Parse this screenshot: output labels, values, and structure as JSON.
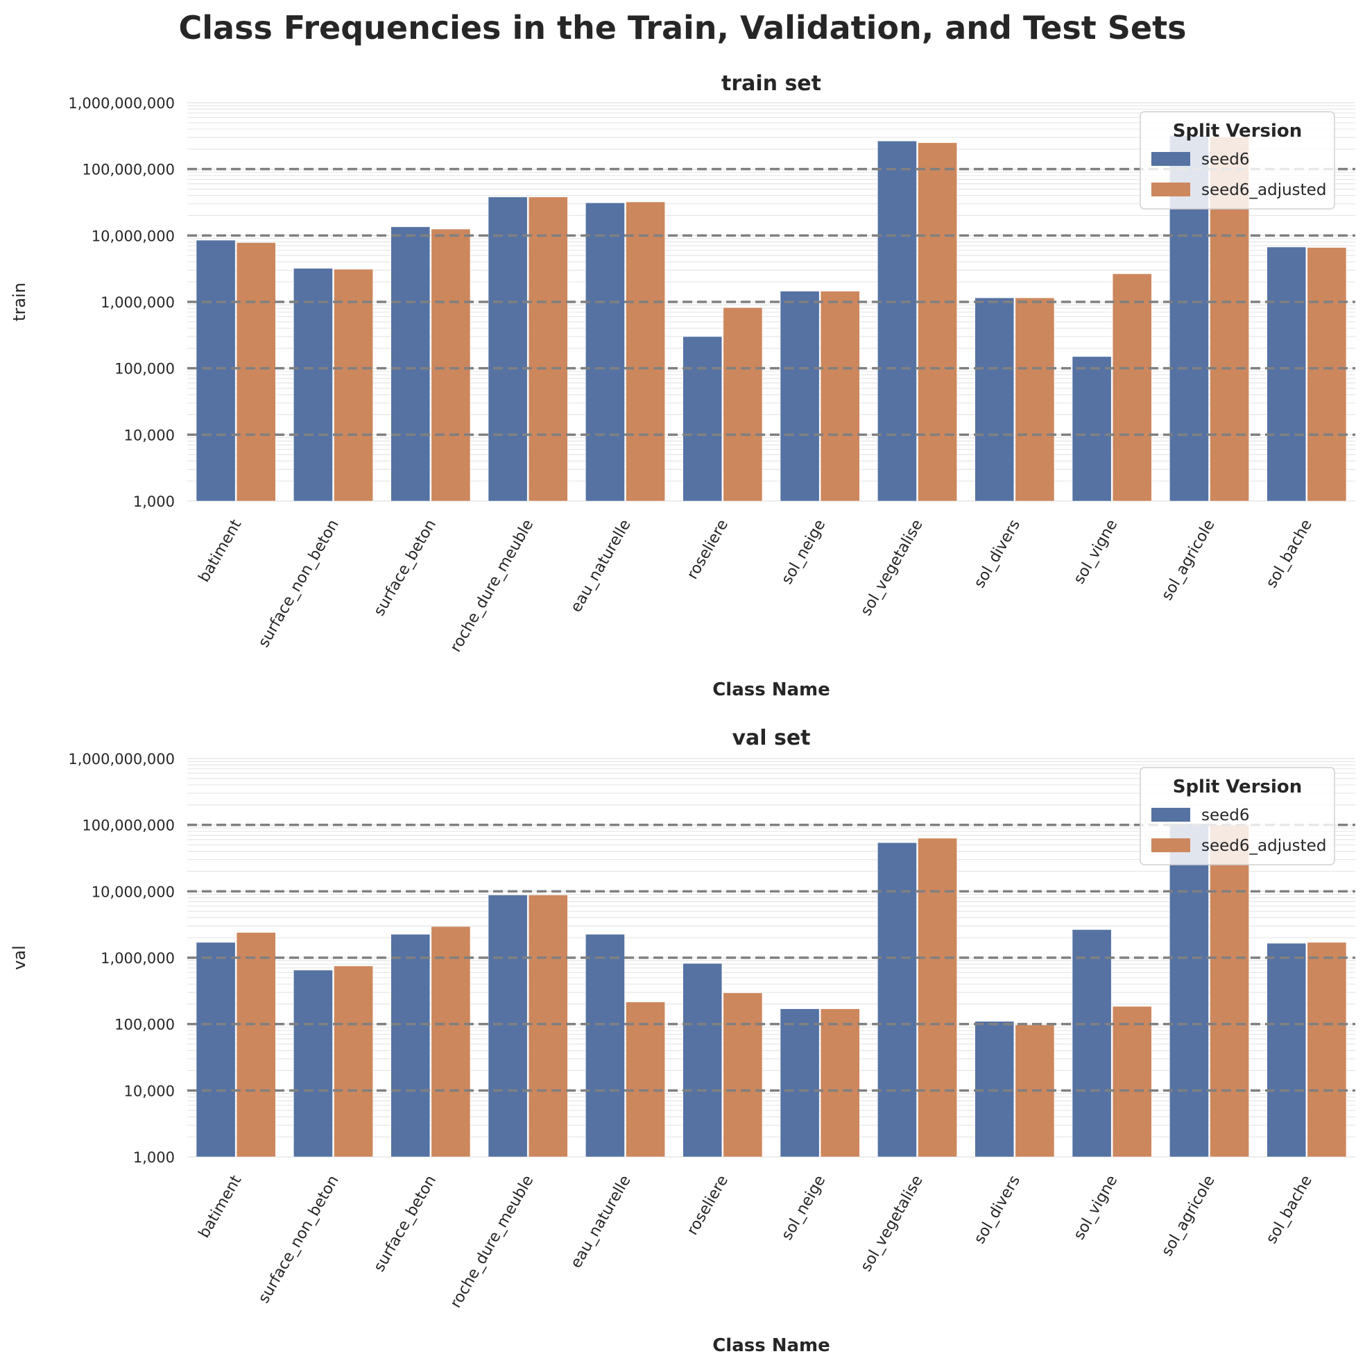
{
  "title": "Class Frequencies in the Train, Validation, and Test Sets",
  "colors": {
    "seed6": "#5572a3",
    "seed6_adjusted": "#cd875d",
    "major_grid": "#808080",
    "minor_grid": "#e6e6e6"
  },
  "chart_data": [
    {
      "type": "bar",
      "title": "train set",
      "xlabel": "Class Name",
      "ylabel": "train",
      "yscale": "log",
      "ylim": [
        1000,
        1000000000
      ],
      "yticks": [
        "1,000",
        "10,000",
        "100,000",
        "1,000,000",
        "10,000,000",
        "100,000,000",
        "1,000,000,000"
      ],
      "grid": true,
      "legend": {
        "title": "Split Version",
        "placement": "top-right"
      },
      "categories": [
        "batiment",
        "surface_non_beton",
        "surface_beton",
        "roche_dure_meuble",
        "eau_naturelle",
        "roseliere",
        "sol_neige",
        "sol_vegetalise",
        "sol_divers",
        "sol_vigne",
        "sol_agricole",
        "sol_bache"
      ],
      "series": [
        {
          "name": "seed6",
          "values": [
            8500000,
            3200000,
            13500000,
            38000000,
            31000000,
            300000,
            1450000,
            265000000,
            1150000,
            150000,
            320000000,
            6700000
          ]
        },
        {
          "name": "seed6_adjusted",
          "values": [
            7800000,
            3100000,
            12500000,
            38000000,
            32000000,
            820000,
            1450000,
            250000000,
            1150000,
            2650000,
            305000000,
            6600000
          ]
        }
      ]
    },
    {
      "type": "bar",
      "title": "val set",
      "xlabel": "Class Name",
      "ylabel": "val",
      "yscale": "log",
      "ylim": [
        1000,
        1000000000
      ],
      "yticks": [
        "1,000",
        "10,000",
        "100,000",
        "1,000,000",
        "10,000,000",
        "100,000,000",
        "1,000,000,000"
      ],
      "grid": true,
      "legend": {
        "title": "Split Version",
        "placement": "top-right"
      },
      "categories": [
        "batiment",
        "surface_non_beton",
        "surface_beton",
        "roche_dure_meuble",
        "eau_naturelle",
        "roseliere",
        "sol_neige",
        "sol_vegetalise",
        "sol_divers",
        "sol_vigne",
        "sol_agricole",
        "sol_bache"
      ],
      "series": [
        {
          "name": "seed6",
          "values": [
            1700000,
            650000,
            2250000,
            8800000,
            2250000,
            820000,
            170000,
            54000000,
            110000,
            2650000,
            105000000,
            1650000
          ]
        },
        {
          "name": "seed6_adjusted",
          "values": [
            2400000,
            750000,
            2950000,
            8800000,
            215000,
            295000,
            170000,
            63000000,
            97000,
            185000,
            100000000,
            1700000
          ]
        }
      ]
    }
  ]
}
